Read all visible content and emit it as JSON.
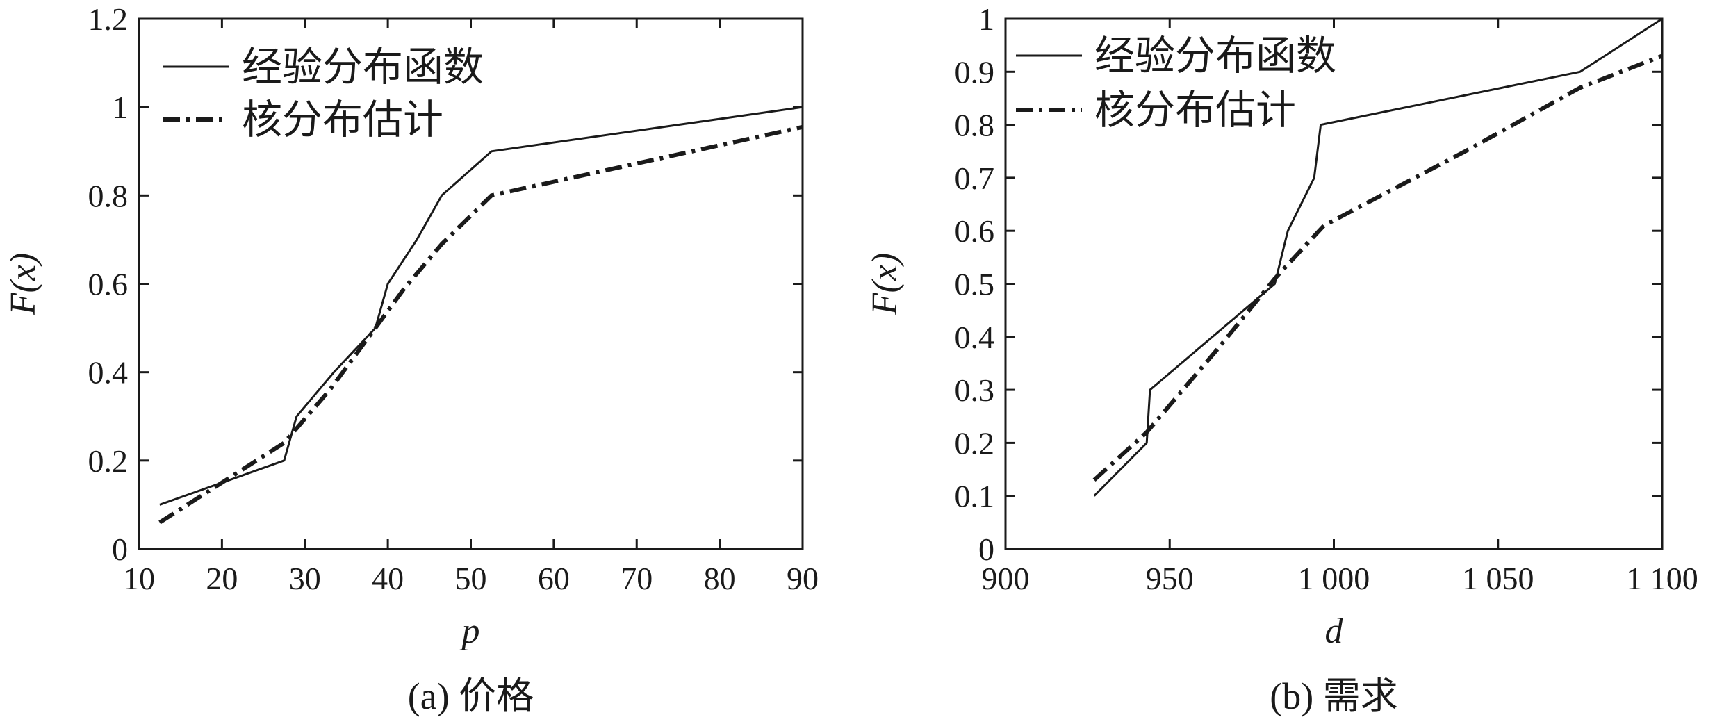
{
  "chart_data": [
    {
      "type": "line",
      "caption": "(a) 价格",
      "xlabel": "p",
      "ylabel": "F(x)",
      "xlim": [
        10,
        90
      ],
      "ylim": [
        0,
        1.2
      ],
      "xticks": [
        10,
        20,
        30,
        40,
        50,
        60,
        70,
        80,
        90
      ],
      "xtick_labels": [
        "10",
        "20",
        "30",
        "40",
        "50",
        "60",
        "70",
        "80",
        "90"
      ],
      "yticks": [
        0,
        0.2,
        0.4,
        0.6,
        0.8,
        1.0,
        1.2
      ],
      "ytick_labels": [
        "0",
        "0.2",
        "0.4",
        "0.6",
        "0.8",
        "1",
        "1.2"
      ],
      "legend_position": "top-left",
      "series": [
        {
          "name": "经验分布函数",
          "style": "solid",
          "x": [
            12.5,
            21.5,
            27.5,
            29,
            33.5,
            38.5,
            40,
            43.5,
            46.5,
            52.5,
            90
          ],
          "y": [
            0.1,
            0.16,
            0.2,
            0.3,
            0.4,
            0.5,
            0.6,
            0.7,
            0.8,
            0.9,
            1.0
          ]
        },
        {
          "name": "核分布估计",
          "style": "dashdot",
          "x": [
            12.5,
            20,
            27.5,
            33,
            38.5,
            42,
            46.5,
            52.5,
            90
          ],
          "y": [
            0.06,
            0.15,
            0.24,
            0.36,
            0.5,
            0.59,
            0.69,
            0.8,
            0.955
          ]
        }
      ]
    },
    {
      "type": "line",
      "caption": "(b) 需求",
      "xlabel": "d",
      "ylabel": "F(x)",
      "xlim": [
        900,
        1100
      ],
      "ylim": [
        0,
        1
      ],
      "xticks": [
        900,
        950,
        1000,
        1050,
        1100
      ],
      "xtick_labels": [
        "900",
        "950",
        "1 000",
        "1 050",
        "1 100"
      ],
      "yticks": [
        0,
        0.1,
        0.2,
        0.3,
        0.4,
        0.5,
        0.6,
        0.7,
        0.8,
        0.9,
        1
      ],
      "ytick_labels": [
        "0",
        "0.1",
        "0.2",
        "0.3",
        "0.4",
        "0.5",
        "0.6",
        "0.7",
        "0.8",
        "0.9",
        "1"
      ],
      "legend_position": "top-left",
      "series": [
        {
          "name": "经验分布函数",
          "style": "solid",
          "x": [
            927,
            943,
            944,
            982,
            986,
            994,
            996,
            1075,
            1100
          ],
          "y": [
            0.1,
            0.2,
            0.3,
            0.5,
            0.6,
            0.7,
            0.8,
            0.9,
            1.0
          ]
        },
        {
          "name": "核分布估计",
          "style": "dashdot",
          "x": [
            927,
            943,
            965,
            982,
            997,
            1040,
            1075,
            1100
          ],
          "y": [
            0.13,
            0.22,
            0.38,
            0.51,
            0.61,
            0.75,
            0.87,
            0.93
          ]
        }
      ]
    }
  ]
}
